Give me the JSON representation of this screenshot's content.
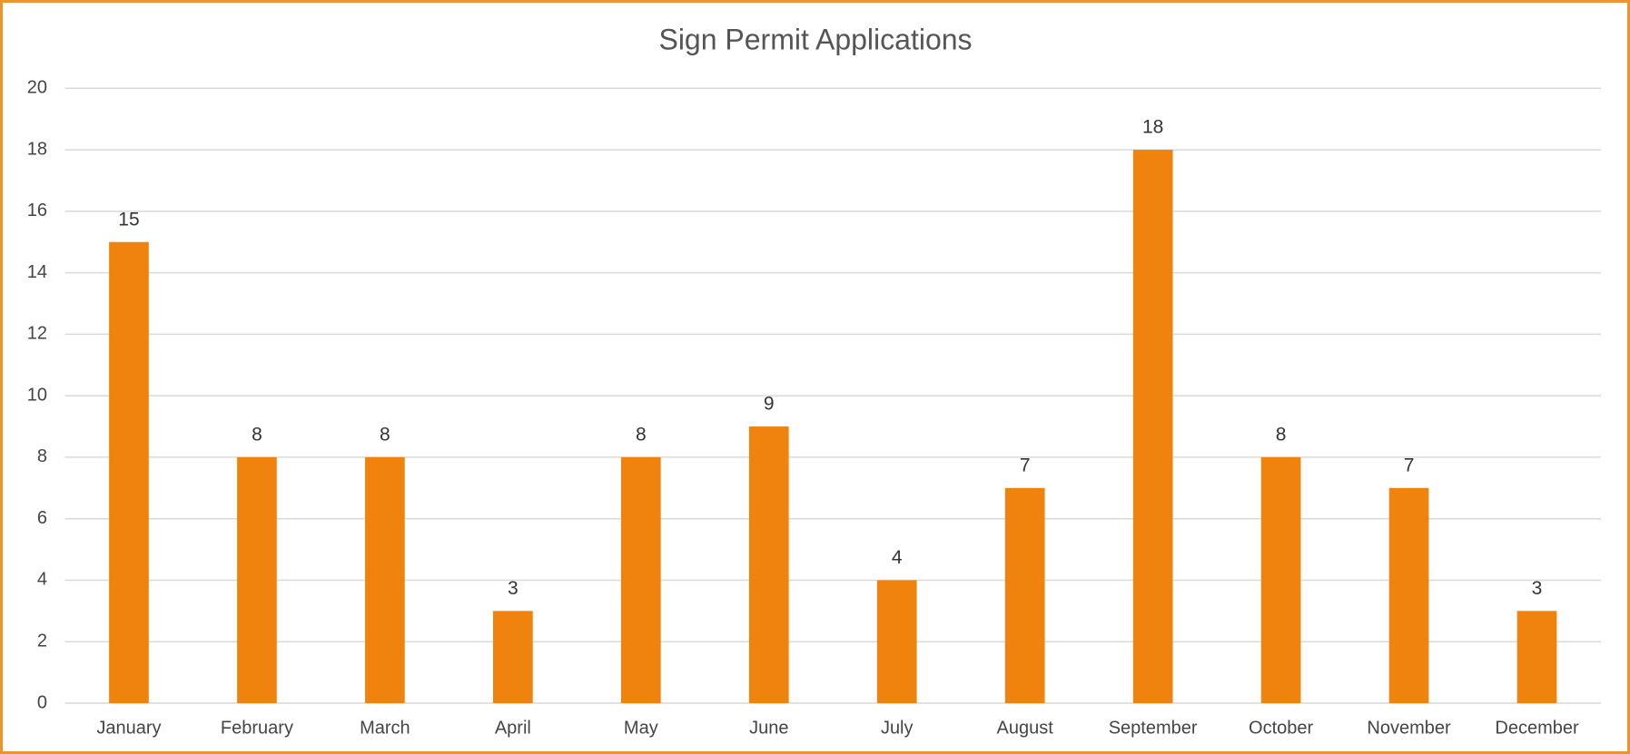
{
  "chart_data": {
    "type": "bar",
    "title": "Sign Permit Applications",
    "categories": [
      "January",
      "February",
      "March",
      "April",
      "May",
      "June",
      "July",
      "August",
      "September",
      "October",
      "November",
      "December"
    ],
    "values": [
      15,
      8,
      8,
      3,
      8,
      9,
      4,
      7,
      18,
      8,
      7,
      3
    ],
    "color": "#f0820e",
    "ylim": [
      0,
      20
    ],
    "yticks": [
      0,
      2,
      4,
      6,
      8,
      10,
      12,
      14,
      16,
      18,
      20
    ],
    "grid": true
  }
}
